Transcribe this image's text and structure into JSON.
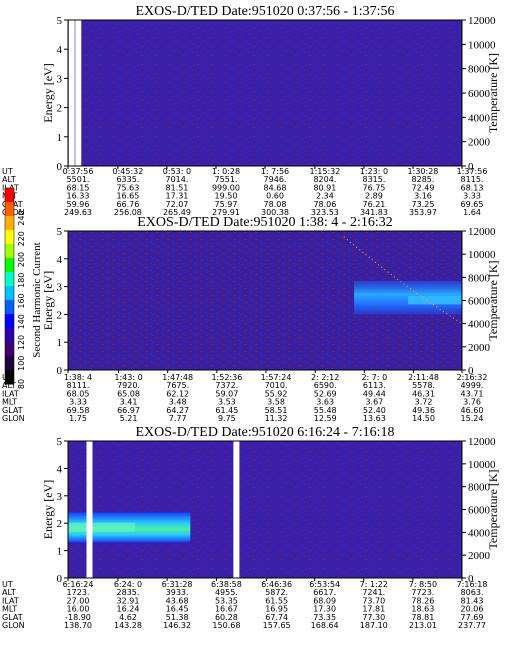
{
  "chart_data": [
    {
      "type": "heatmap",
      "title": "EXOS-D/TED   Date:951020  0:37:56 - 1:37:56",
      "ylabel": "Energy [eV]",
      "y2label": "Temperature [K]",
      "ylim": [
        0,
        5
      ],
      "y2lim": [
        0,
        12000
      ],
      "yticks": [
        "0",
        "1",
        "2",
        "3",
        "4",
        "5"
      ],
      "y2ticks": [
        "0",
        "2000",
        "4000",
        "6000",
        "8000",
        "10000",
        "12000"
      ],
      "row_labels": [
        "UT",
        "ALT",
        "ILAT",
        "MLT",
        "GLAT",
        "GLON"
      ],
      "columns": [
        [
          "0:37:56",
          "5501.",
          "68.15",
          "16.33",
          "59.96",
          "249.63"
        ],
        [
          "0:45:32",
          "6335.",
          "75.63",
          "16.65",
          "66.76",
          "256.08"
        ],
        [
          "0:53: 0",
          "7014.",
          "81.51",
          "17.31",
          "72.07",
          "265.49"
        ],
        [
          "1: 0:28",
          "7551.",
          "999.00",
          "19.50",
          "75.97",
          "279.91"
        ],
        [
          "1: 7:56",
          "7946.",
          "84.68",
          "0.60",
          "78.08",
          "300.38"
        ],
        [
          "1:15:32",
          "8204.",
          "80.91",
          "2.34",
          "78.06",
          "323.53"
        ],
        [
          "1:23: 0",
          "8315.",
          "76.75",
          "2.89",
          "76.21",
          "341.83"
        ],
        [
          "1:30:28",
          "8285.",
          "72.49",
          "3.16",
          "73.25",
          "353.97"
        ],
        [
          "1:37:56",
          "8115.",
          "68.13",
          "3.33",
          "69.65",
          "1.64"
        ]
      ],
      "features": [
        {
          "type": "data_gap",
          "x_time": "0:38:30"
        },
        {
          "type": "data_gap",
          "x_time": "0:39:30"
        }
      ]
    },
    {
      "type": "heatmap",
      "title": "EXOS-D/TED   Date:951020  1:38: 4 - 2:16:32",
      "ylabel": "Energy [eV]",
      "y2label": "Temperature [K]",
      "ylim": [
        0,
        5
      ],
      "y2lim": [
        0,
        12000
      ],
      "yticks": [
        "0",
        "1",
        "2",
        "3",
        "4",
        "5"
      ],
      "y2ticks": [
        "0",
        "2000",
        "4000",
        "6000",
        "8000",
        "10000",
        "12000"
      ],
      "row_labels": [
        "UT",
        "ALT",
        "ILAT",
        "MLT",
        "GLAT",
        "GLON"
      ],
      "columns": [
        [
          "1:38: 4",
          "8111.",
          "68.05",
          "3.33",
          "69.58",
          "1.75"
        ],
        [
          "1:43: 0",
          "7920.",
          "65.08",
          "3.41",
          "66.97",
          "5.21"
        ],
        [
          "1:47:48",
          "7675.",
          "62.12",
          "3.48",
          "64.27",
          "7.77"
        ],
        [
          "1:52:36",
          "7372.",
          "59.07",
          "3.53",
          "61.45",
          "9.75"
        ],
        [
          "1:57:24",
          "7010.",
          "55.92",
          "3.58",
          "58.51",
          "11.32"
        ],
        [
          "2: 2:12",
          "6590.",
          "52.69",
          "3.63",
          "55.48",
          "12.59"
        ],
        [
          "2: 7: 0",
          "6113.",
          "49.44",
          "3.67",
          "52.40",
          "13.63"
        ],
        [
          "2:11:48",
          "5578.",
          "46.31",
          "3.72",
          "49.36",
          "14.50"
        ],
        [
          "2:16:32",
          "4999.",
          "43.71",
          "3.76",
          "46.60",
          "15.24"
        ]
      ],
      "features": [
        {
          "type": "enhanced_band",
          "x_time_start": "2: 6:00",
          "x_time_end": "2:16:32",
          "energy_ev": [
            2.0,
            3.2
          ]
        },
        {
          "type": "temperature_trace",
          "x_time_start": "2: 5:00",
          "x_time_end": "2:16:32",
          "temp_k_start": 11500,
          "temp_k_end": 4000
        }
      ]
    },
    {
      "type": "heatmap",
      "title": "EXOS-D/TED   Date:951020  6:16:24 - 7:16:18",
      "ylabel": "Energy [eV]",
      "y2label": "Temperature [K]",
      "ylim": [
        0,
        5
      ],
      "y2lim": [
        0,
        12000
      ],
      "yticks": [
        "0",
        "1",
        "2",
        "3",
        "4",
        "5"
      ],
      "y2ticks": [
        "0",
        "2000",
        "4000",
        "6000",
        "8000",
        "10000",
        "12000"
      ],
      "row_labels": [
        "UT",
        "ALT",
        "ILAT",
        "MLT",
        "GLAT",
        "GLON"
      ],
      "columns": [
        [
          "6:16:24",
          "1723.",
          "27.00",
          "16.00",
          "-18.90",
          "138.70"
        ],
        [
          "6:24: 0",
          "2835.",
          "32.91",
          "16.24",
          "4.62",
          "143.28"
        ],
        [
          "6:31:28",
          "3933.",
          "43.68",
          "16.45",
          "51.38",
          "146.32"
        ],
        [
          "6:38:58",
          "4955.",
          "53.35",
          "16.67",
          "60.28",
          "150.68"
        ],
        [
          "6:46:36",
          "5872.",
          "61.55",
          "16.95",
          "67.74",
          "157.65"
        ],
        [
          "6:53:54",
          "6617.",
          "68.09",
          "17.30",
          "73.35",
          "168.64"
        ],
        [
          "7: 1:22",
          "7241.",
          "73.70",
          "17.81",
          "77.30",
          "187.10"
        ],
        [
          "7: 8:50",
          "7723.",
          "78.26",
          "18.63",
          "78.81",
          "213.01"
        ],
        [
          "7:16:18",
          "8063.",
          "81.43",
          "20.06",
          "77.69",
          "237.77"
        ]
      ],
      "features": [
        {
          "type": "enhanced_band",
          "x_time_start": "6:16:24",
          "x_time_end": "6:35:00",
          "energy_ev": [
            1.3,
            2.4
          ]
        },
        {
          "type": "data_gap",
          "x_time": "6:19:40"
        },
        {
          "type": "data_gap",
          "x_time": "6:42:00"
        }
      ]
    }
  ],
  "colorbar": {
    "label": "Second Harmonic Current",
    "ticks": [
      "240",
      "220",
      "200",
      "180",
      "160",
      "140",
      "120",
      "100",
      "80"
    ],
    "colors": [
      "#ff0000",
      "#ff6000",
      "#ffb000",
      "#ffff00",
      "#a0ff00",
      "#00ff00",
      "#00ffc0",
      "#00c0ff",
      "#0060ff",
      "#0000ff",
      "#3000b0",
      "#400070",
      "#200040",
      "#000000"
    ]
  },
  "colors": {
    "background": "#3a1fa8",
    "speckle_red": "#8a2040",
    "speckle_blue": "#2a2ad0",
    "band_blue": "#1a3cf0",
    "band_cyan": "#29c8ff",
    "band_green": "#4cf0a0"
  }
}
